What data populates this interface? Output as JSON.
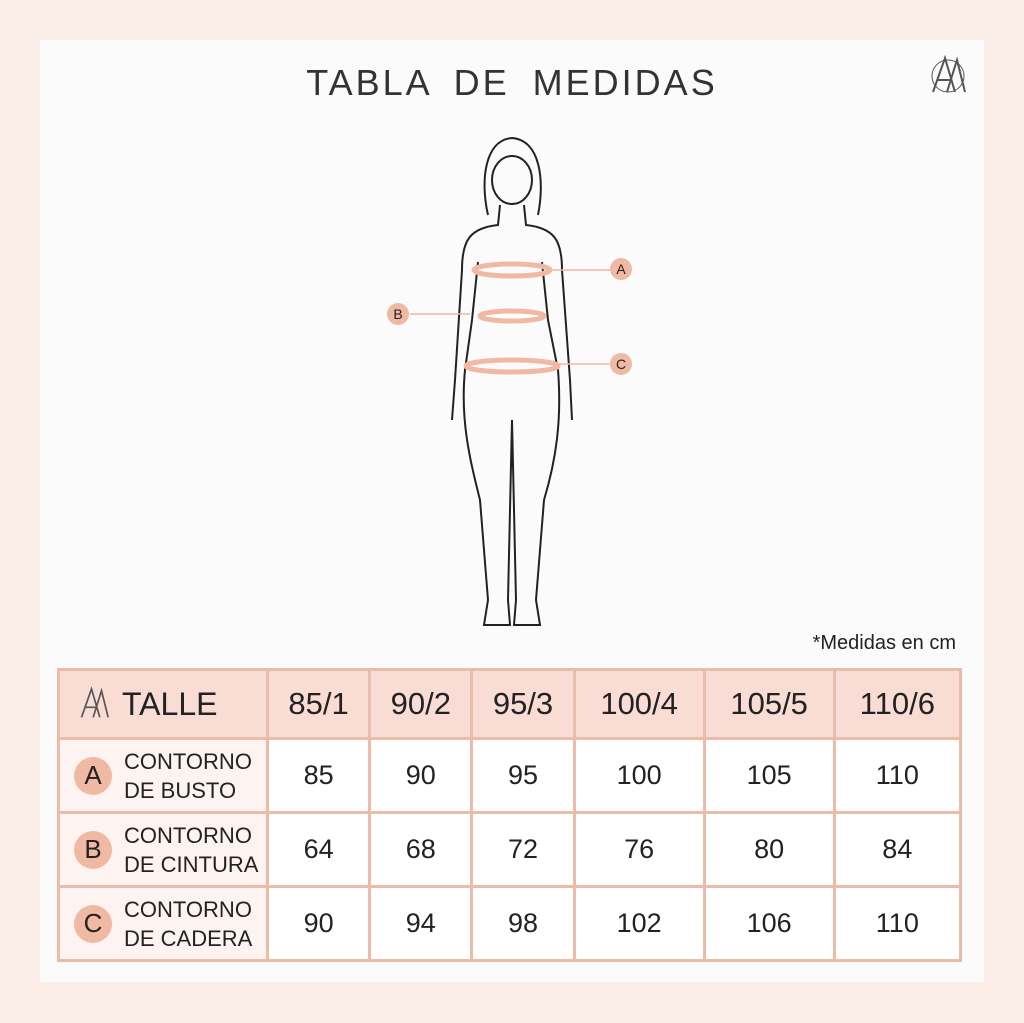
{
  "title": "TABLA DE MEDIDAS",
  "note": "*Medidas en cm",
  "figure_labels": [
    "A",
    "B",
    "C"
  ],
  "colors": {
    "accent": "#efb9a3",
    "header_bg": "#f9ddd4",
    "border": "#ecbcab"
  },
  "table": {
    "header_label": "TALLE",
    "sizes": [
      "85/1",
      "90/2",
      "95/3",
      "100/4",
      "105/5",
      "110/6"
    ],
    "rows": [
      {
        "letter": "A",
        "line1": "CONTORNO",
        "line2": "DE BUSTO",
        "values": [
          "85",
          "90",
          "95",
          "100",
          "105",
          "110"
        ]
      },
      {
        "letter": "B",
        "line1": "CONTORNO",
        "line2": "DE CINTURA",
        "values": [
          "64",
          "68",
          "72",
          "76",
          "80",
          "84"
        ]
      },
      {
        "letter": "C",
        "line1": "CONTORNO",
        "line2": "DE CADERA",
        "values": [
          "90",
          "94",
          "98",
          "102",
          "106",
          "110"
        ]
      }
    ]
  }
}
